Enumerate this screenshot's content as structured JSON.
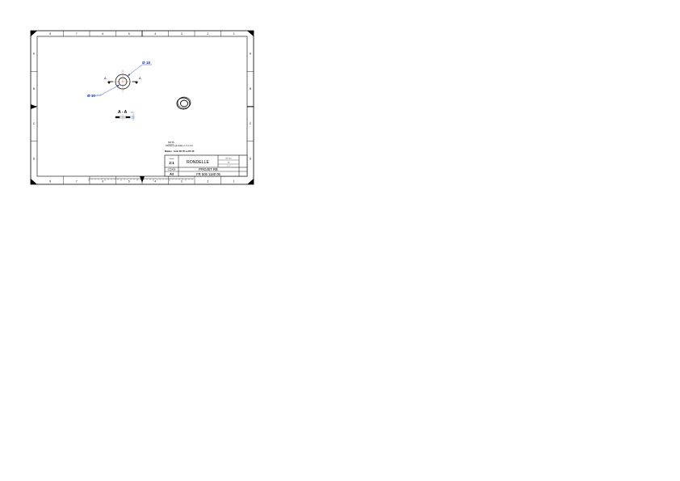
{
  "sheet": {
    "top_zone_labels": [
      "8",
      "7",
      "6",
      "5",
      "4",
      "3",
      "2",
      "1"
    ],
    "bottom_zone_labels": [
      "8",
      "7",
      "6",
      "5",
      "4",
      "3",
      "2",
      "1"
    ],
    "left_zone_labels": [
      "A",
      "B",
      "C",
      "D"
    ],
    "right_zone_labels": [
      "A",
      "B",
      "C",
      "D"
    ]
  },
  "drawing": {
    "outer_diameter_label": "Ø 18",
    "inner_diameter_label": "Ø 10",
    "inner_tolerance": "+0.1 / 0",
    "section_marker": "A",
    "section_title": "A - A",
    "thickness_label": "1.6",
    "colors": {
      "dimension": "#1f3fbf",
      "center": "#cc2222",
      "line": "#000000"
    }
  },
  "notes": {
    "title": "NOTA",
    "tolerance_note": "Tolérance générale +/- 0,1 mm",
    "material_note": "Matière : Acier DC 05 ou DC 06"
  },
  "title_block": {
    "scale_label": "Echelle",
    "scale": "2:1",
    "part_name": "RONDELLE",
    "ref_top": "Ref. client",
    "ref_mid": "Qté",
    "ref_bottom": "1 / 1",
    "format": "A3",
    "project": "PROJET RB",
    "drawing_number": "FR 505 1180 05"
  }
}
